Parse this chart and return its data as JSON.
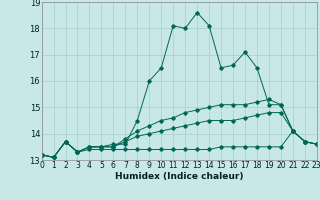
{
  "xlabel": "Humidex (Indice chaleur)",
  "bg_color": "#c8e8e8",
  "grid_color": "#a8cece",
  "line_color": "#006655",
  "x_min": 0,
  "x_max": 23,
  "y_min": 13,
  "y_max": 19,
  "lines": [
    {
      "x": [
        0,
        1,
        2,
        3,
        4,
        5,
        6,
        7,
        8,
        9,
        10,
        11,
        12,
        13,
        14,
        15,
        16,
        17,
        18,
        19,
        20,
        21,
        22,
        23
      ],
      "y": [
        13.2,
        13.1,
        13.7,
        13.3,
        13.5,
        13.5,
        13.6,
        13.6,
        14.5,
        16.0,
        16.5,
        18.1,
        18.0,
        18.6,
        18.1,
        16.5,
        16.6,
        17.1,
        16.5,
        15.1,
        15.1,
        14.1,
        13.7,
        13.6
      ]
    },
    {
      "x": [
        0,
        1,
        2,
        3,
        4,
        5,
        6,
        7,
        8,
        9,
        10,
        11,
        12,
        13,
        14,
        15,
        16,
        17,
        18,
        19,
        20,
        21,
        22,
        23
      ],
      "y": [
        13.2,
        13.1,
        13.7,
        13.3,
        13.5,
        13.5,
        13.5,
        13.8,
        14.1,
        14.3,
        14.5,
        14.6,
        14.8,
        14.9,
        15.0,
        15.1,
        15.1,
        15.1,
        15.2,
        15.3,
        15.1,
        14.1,
        13.7,
        13.6
      ]
    },
    {
      "x": [
        0,
        1,
        2,
        3,
        4,
        5,
        6,
        7,
        8,
        9,
        10,
        11,
        12,
        13,
        14,
        15,
        16,
        17,
        18,
        19,
        20,
        21,
        22,
        23
      ],
      "y": [
        13.2,
        13.1,
        13.7,
        13.3,
        13.5,
        13.5,
        13.5,
        13.7,
        13.9,
        14.0,
        14.1,
        14.2,
        14.3,
        14.4,
        14.5,
        14.5,
        14.5,
        14.6,
        14.7,
        14.8,
        14.8,
        14.1,
        13.7,
        13.6
      ]
    },
    {
      "x": [
        0,
        1,
        2,
        3,
        4,
        5,
        6,
        7,
        8,
        9,
        10,
        11,
        12,
        13,
        14,
        15,
        16,
        17,
        18,
        19,
        20,
        21,
        22,
        23
      ],
      "y": [
        13.2,
        13.1,
        13.7,
        13.3,
        13.4,
        13.4,
        13.4,
        13.4,
        13.4,
        13.4,
        13.4,
        13.4,
        13.4,
        13.4,
        13.4,
        13.5,
        13.5,
        13.5,
        13.5,
        13.5,
        13.5,
        14.1,
        13.7,
        13.6
      ]
    }
  ],
  "tick_fontsize": 5.5,
  "xlabel_fontsize": 6.5
}
